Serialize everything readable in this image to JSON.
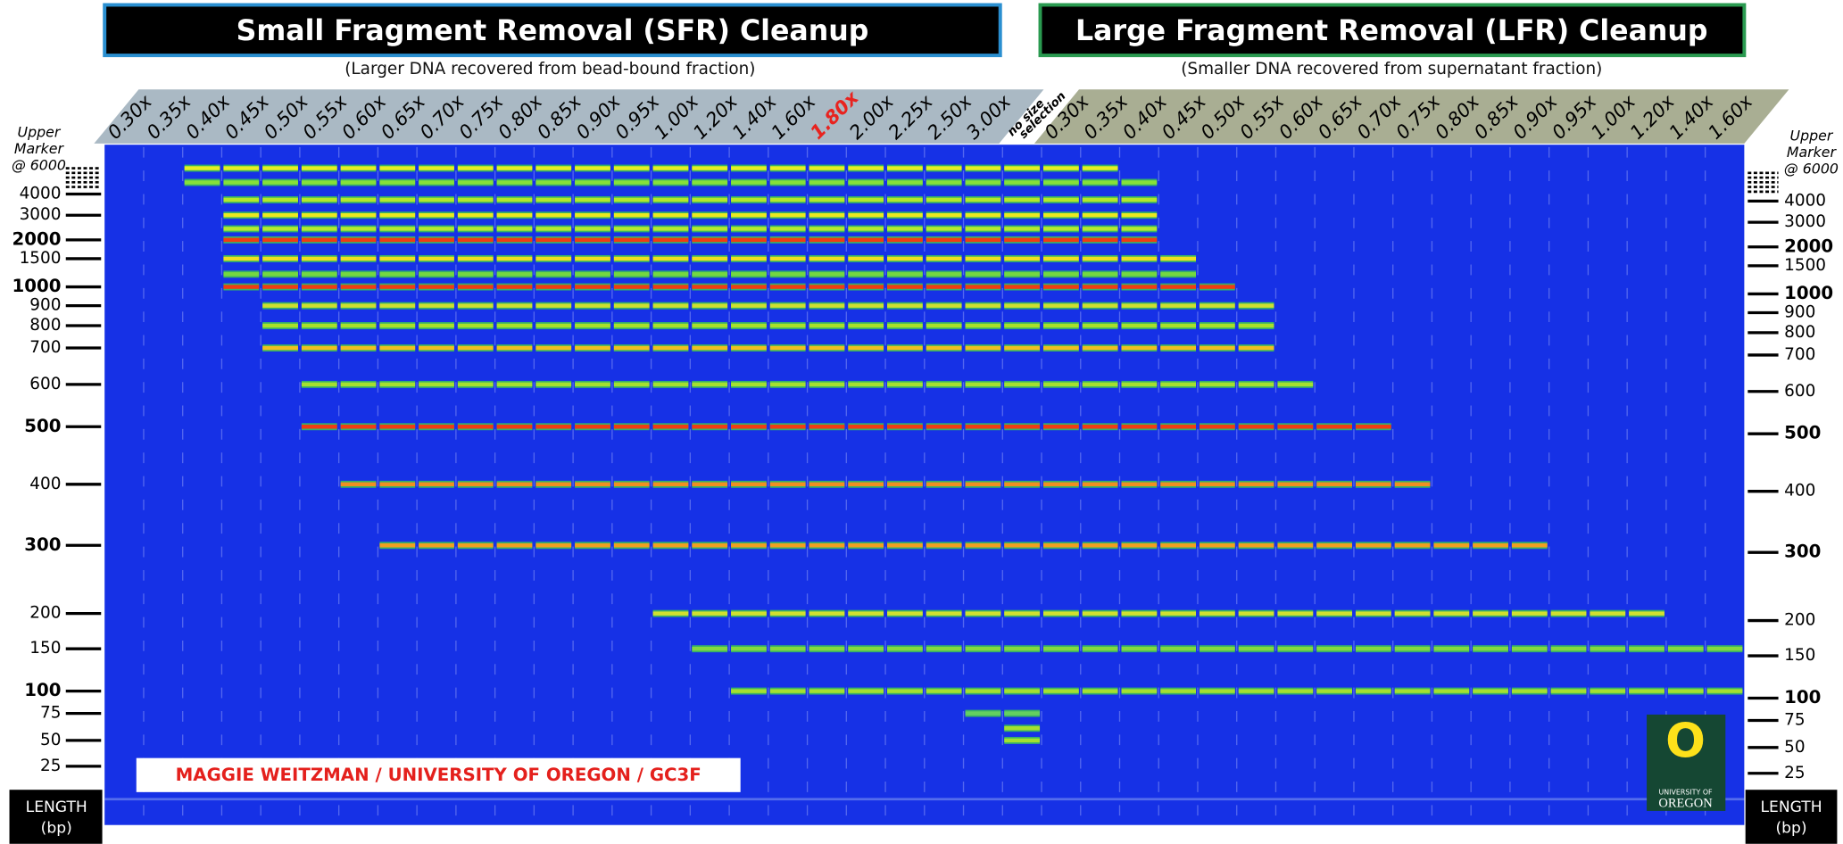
{
  "header": {
    "sfr_title": "Small Fragment Removal (SFR) Cleanup",
    "sfr_subtitle": "(Larger DNA recovered from bead-bound fraction)",
    "lfr_title": "Large Fragment Removal (LFR) Cleanup",
    "lfr_subtitle": "(Smaller DNA recovered from supernatant fraction)"
  },
  "sfr_lanes": [
    {
      "label": "0.30x",
      "range_bp": null
    },
    {
      "label": "0.35x",
      "range_bp": null
    },
    {
      "label": "0.40x",
      "range_bp": [
        4800,
        6000
      ]
    },
    {
      "label": "0.45x",
      "range_bp": [
        1000,
        6000
      ]
    },
    {
      "label": "0.50x",
      "range_bp": [
        700,
        6000
      ]
    },
    {
      "label": "0.55x",
      "range_bp": [
        500,
        6000
      ]
    },
    {
      "label": "0.60x",
      "range_bp": [
        400,
        6000
      ]
    },
    {
      "label": "0.65x",
      "range_bp": [
        300,
        6000
      ]
    },
    {
      "label": "0.70x",
      "range_bp": [
        300,
        6000
      ]
    },
    {
      "label": "0.75x",
      "range_bp": [
        300,
        6000
      ]
    },
    {
      "label": "0.80x",
      "range_bp": [
        300,
        6000
      ]
    },
    {
      "label": "0.85x",
      "range_bp": [
        300,
        6000
      ]
    },
    {
      "label": "0.90x",
      "range_bp": [
        300,
        6000
      ]
    },
    {
      "label": "0.95x",
      "range_bp": [
        300,
        6000
      ]
    },
    {
      "label": "1.00x",
      "range_bp": [
        200,
        6000
      ]
    },
    {
      "label": "1.20x",
      "range_bp": [
        150,
        6000
      ]
    },
    {
      "label": "1.40x",
      "range_bp": [
        100,
        6000
      ]
    },
    {
      "label": "1.60x",
      "range_bp": [
        100,
        6000
      ]
    },
    {
      "label": "1.80x",
      "range_bp": [
        100,
        6000
      ],
      "label_color": "#e8231f"
    },
    {
      "label": "2.00x",
      "range_bp": [
        100,
        6000
      ]
    },
    {
      "label": "2.25x",
      "range_bp": [
        100,
        6000
      ]
    },
    {
      "label": "2.50x",
      "range_bp": [
        100,
        6000
      ]
    },
    {
      "label": "3.00x",
      "range_bp": [
        75,
        6000
      ]
    }
  ],
  "control_lane": {
    "label": [
      "no size",
      "selection"
    ],
    "range_bp": [
      50,
      6000
    ]
  },
  "lfr_lanes": [
    {
      "label": "0.30x",
      "range_bp": [
        100,
        6000
      ]
    },
    {
      "label": "0.35x",
      "range_bp": [
        100,
        6000
      ]
    },
    {
      "label": "0.40x",
      "range_bp": [
        100,
        4800
      ]
    },
    {
      "label": "0.45x",
      "range_bp": [
        100,
        1500
      ]
    },
    {
      "label": "0.50x",
      "range_bp": [
        100,
        1000
      ]
    },
    {
      "label": "0.55x",
      "range_bp": [
        100,
        900
      ]
    },
    {
      "label": "0.60x",
      "range_bp": [
        100,
        600
      ]
    },
    {
      "label": "0.65x",
      "range_bp": [
        100,
        500
      ]
    },
    {
      "label": "0.70x",
      "range_bp": [
        100,
        500
      ]
    },
    {
      "label": "0.75x",
      "range_bp": [
        100,
        400
      ]
    },
    {
      "label": "0.80x",
      "range_bp": [
        100,
        300
      ]
    },
    {
      "label": "0.85x",
      "range_bp": [
        100,
        300
      ]
    },
    {
      "label": "0.90x",
      "range_bp": [
        100,
        300
      ]
    },
    {
      "label": "0.95x",
      "range_bp": [
        100,
        200
      ]
    },
    {
      "label": "1.00x",
      "range_bp": [
        100,
        200
      ]
    },
    {
      "label": "1.20x",
      "range_bp": [
        100,
        200
      ]
    },
    {
      "label": "1.40x",
      "range_bp": [
        100,
        150
      ]
    },
    {
      "label": "1.60x",
      "range_bp": [
        100,
        150
      ]
    }
  ],
  "gel": {
    "color": "#1631e6",
    "fragments": [
      {
        "bp": 6000,
        "color": "#e6f022"
      },
      {
        "bp": 4800,
        "color": "#86e03a"
      },
      {
        "bp": 3700,
        "color": "#b4e82a"
      },
      {
        "bp": 3000,
        "color": "#eaea20"
      },
      {
        "bp": 2400,
        "color": "#b6e830"
      },
      {
        "bp": 2000,
        "color": "#f03c12"
      },
      {
        "bp": 1500,
        "color": "#f0e020"
      },
      {
        "bp": 1200,
        "color": "#74d840"
      },
      {
        "bp": 1000,
        "color": "#f03c12"
      },
      {
        "bp": 900,
        "color": "#cce030"
      },
      {
        "bp": 800,
        "color": "#a8e02a"
      },
      {
        "bp": 700,
        "color": "#f0c020"
      },
      {
        "bp": 600,
        "color": "#a4e030"
      },
      {
        "bp": 500,
        "color": "#f03c12"
      },
      {
        "bp": 400,
        "color": "#f09020"
      },
      {
        "bp": 300,
        "color": "#f0a020"
      },
      {
        "bp": 200,
        "color": "#d0e030"
      },
      {
        "bp": 150,
        "color": "#84d840"
      },
      {
        "bp": 100,
        "color": "#a4e030"
      },
      {
        "bp": 75,
        "color": "#64d060"
      },
      {
        "bp": 60,
        "color": "#a4e030"
      },
      {
        "bp": 50,
        "color": "#a4e030"
      }
    ]
  },
  "size_markers": {
    "upper_label": [
      "Upper",
      "Marker",
      "@ 6000"
    ],
    "upper_bp": 6000,
    "markers": [
      4000,
      3000,
      2000,
      1500,
      1000,
      900,
      800,
      700,
      600,
      500,
      400,
      300,
      200,
      150,
      100,
      75,
      50,
      25
    ],
    "bold": [
      2000,
      1000,
      500,
      300,
      100
    ]
  },
  "length_label": [
    "LENGTH",
    "(bp)"
  ],
  "credit": "MAGGIE WEITZMAN / UNIVERSITY OF OREGON / GC3F",
  "logo": {
    "letter": "O",
    "lines": [
      "UNIVERSITY OF",
      "OREGON"
    ]
  }
}
